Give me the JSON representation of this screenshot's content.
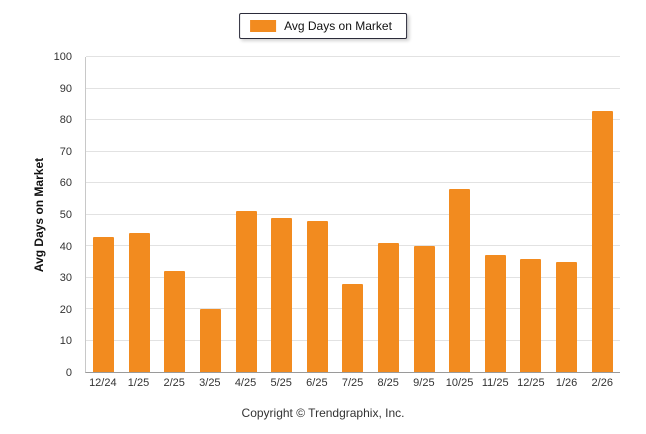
{
  "chart_data": {
    "type": "bar",
    "title": "",
    "legend_label": "Avg Days on Market",
    "ylabel": "Avg Days on Market",
    "xlabel": "",
    "categories": [
      "12/24",
      "1/25",
      "2/25",
      "3/25",
      "4/25",
      "5/25",
      "6/25",
      "7/25",
      "8/25",
      "9/25",
      "10/25",
      "11/25",
      "12/25",
      "1/26",
      "2/26"
    ],
    "values": [
      43,
      44,
      32,
      20,
      51,
      49,
      48,
      28,
      41,
      40,
      58,
      37,
      36,
      35,
      83
    ],
    "ylim": [
      0,
      100
    ],
    "ytick_step": 10,
    "grid": true,
    "legend_position": "top",
    "bar_color": "#F28B1F"
  },
  "footer": {
    "copyright": "Copyright © Trendgraphix, Inc."
  }
}
